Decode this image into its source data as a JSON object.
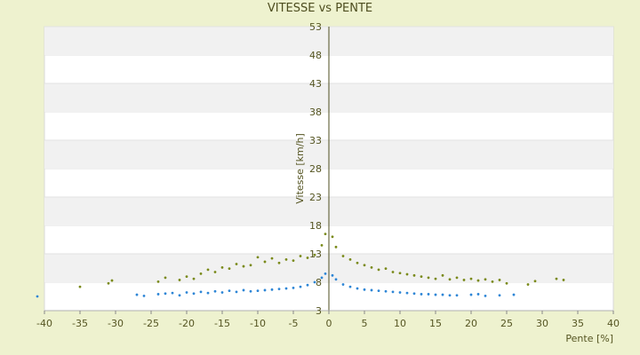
{
  "chart_data": {
    "type": "scatter",
    "title": "VITESSE vs PENTE",
    "xlabel": "Pente [%]",
    "ylabel": "Vitesse [km/h]",
    "xlim": [
      -40,
      40
    ],
    "ylim": [
      3,
      53
    ],
    "x_ticks": [
      -40,
      -35,
      -30,
      -25,
      -20,
      -15,
      -10,
      -5,
      0,
      5,
      10,
      15,
      20,
      25,
      30,
      35,
      40
    ],
    "y_ticks": [
      3,
      8,
      13,
      18,
      23,
      28,
      33,
      38,
      43,
      48,
      53
    ],
    "grid": "horizontal alternating bands",
    "legend": "none",
    "series": [
      {
        "color": "#2e86d6",
        "points": [
          [
            -41,
            5.5
          ],
          [
            -27,
            5.8
          ],
          [
            -26,
            5.6
          ],
          [
            -24,
            5.9
          ],
          [
            -23,
            6.0
          ],
          [
            -22,
            6.1
          ],
          [
            -21,
            5.7
          ],
          [
            -20,
            6.2
          ],
          [
            -19,
            6.0
          ],
          [
            -18,
            6.3
          ],
          [
            -17,
            6.1
          ],
          [
            -16,
            6.4
          ],
          [
            -15,
            6.2
          ],
          [
            -14,
            6.5
          ],
          [
            -13,
            6.3
          ],
          [
            -12,
            6.6
          ],
          [
            -11,
            6.4
          ],
          [
            -10,
            6.5
          ],
          [
            -9,
            6.6
          ],
          [
            -8,
            6.7
          ],
          [
            -7,
            6.8
          ],
          [
            -6,
            6.9
          ],
          [
            -5,
            7.0
          ],
          [
            -4,
            7.2
          ],
          [
            -3,
            7.5
          ],
          [
            -2,
            8.0
          ],
          [
            -1,
            8.8
          ],
          [
            -0.5,
            9.5
          ],
          [
            0.5,
            9.2
          ],
          [
            1,
            8.5
          ],
          [
            2,
            7.6
          ],
          [
            3,
            7.2
          ],
          [
            4,
            6.9
          ],
          [
            5,
            6.7
          ],
          [
            6,
            6.6
          ],
          [
            7,
            6.5
          ],
          [
            8,
            6.4
          ],
          [
            9,
            6.3
          ],
          [
            10,
            6.2
          ],
          [
            11,
            6.1
          ],
          [
            12,
            6.0
          ],
          [
            13,
            5.9
          ],
          [
            14,
            5.9
          ],
          [
            15,
            5.8
          ],
          [
            16,
            5.8
          ],
          [
            17,
            5.7
          ],
          [
            18,
            5.7
          ],
          [
            20,
            5.8
          ],
          [
            21,
            5.9
          ],
          [
            22,
            5.6
          ],
          [
            24,
            5.7
          ],
          [
            26,
            5.8
          ]
        ]
      },
      {
        "color": "#7a8a1a",
        "points": [
          [
            -35,
            7.2
          ],
          [
            -31,
            7.8
          ],
          [
            -30.5,
            8.3
          ],
          [
            -24,
            8.1
          ],
          [
            -23,
            8.8
          ],
          [
            -21,
            8.4
          ],
          [
            -20,
            9.0
          ],
          [
            -19,
            8.6
          ],
          [
            -18,
            9.5
          ],
          [
            -17,
            10.2
          ],
          [
            -16,
            9.8
          ],
          [
            -15,
            10.6
          ],
          [
            -14,
            10.4
          ],
          [
            -13,
            11.2
          ],
          [
            -12,
            10.8
          ],
          [
            -11,
            11.0
          ],
          [
            -10,
            12.4
          ],
          [
            -9,
            11.6
          ],
          [
            -8,
            12.2
          ],
          [
            -7,
            11.4
          ],
          [
            -6,
            12.0
          ],
          [
            -5,
            11.8
          ],
          [
            -4,
            12.6
          ],
          [
            -3,
            12.3
          ],
          [
            -2,
            12.8
          ],
          [
            -1,
            14.5
          ],
          [
            -0.5,
            16.5
          ],
          [
            0.5,
            16.0
          ],
          [
            1,
            14.2
          ],
          [
            2,
            12.6
          ],
          [
            3,
            12.0
          ],
          [
            4,
            11.4
          ],
          [
            5,
            11.0
          ],
          [
            6,
            10.6
          ],
          [
            7,
            10.2
          ],
          [
            8,
            10.4
          ],
          [
            9,
            9.8
          ],
          [
            10,
            9.6
          ],
          [
            11,
            9.4
          ],
          [
            12,
            9.2
          ],
          [
            13,
            9.0
          ],
          [
            14,
            8.8
          ],
          [
            15,
            8.6
          ],
          [
            16,
            9.2
          ],
          [
            17,
            8.5
          ],
          [
            18,
            8.8
          ],
          [
            19,
            8.4
          ],
          [
            20,
            8.6
          ],
          [
            21,
            8.3
          ],
          [
            22,
            8.5
          ],
          [
            23,
            8.1
          ],
          [
            24,
            8.4
          ],
          [
            25,
            7.8
          ],
          [
            28,
            7.6
          ],
          [
            29,
            8.2
          ],
          [
            32,
            8.6
          ],
          [
            33,
            8.4
          ]
        ]
      }
    ]
  }
}
